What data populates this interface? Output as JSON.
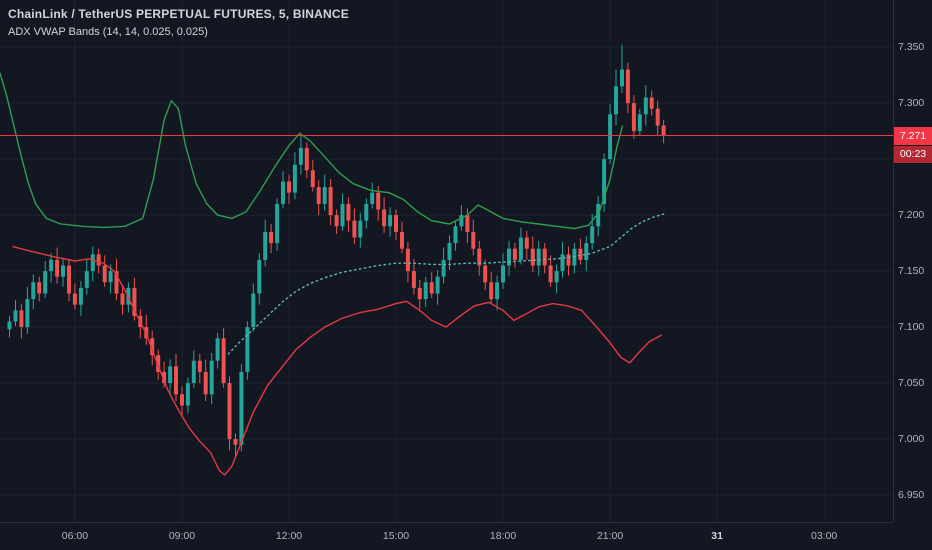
{
  "colors": {
    "background": "#131722",
    "grid": "#1e222d",
    "axis_text": "#b2b5be",
    "title_text": "#d1d4dc",
    "candle_up": "#26a69a",
    "candle_down": "#ef5350",
    "upper_band": "#2f9e4f",
    "lower_band": "#e53945",
    "vwap": "#5fb9b2",
    "price_line": "#f23645",
    "price_badge_bg": "#f23645",
    "countdown_badge_bg": "#b22833"
  },
  "price_axis": {
    "ticks": [
      7.35,
      7.3,
      7.25,
      7.2,
      7.15,
      7.1,
      7.05,
      7.0,
      6.95
    ],
    "last_price_label": "7.271",
    "countdown": "00:23"
  },
  "time_axis": {
    "ticks": [
      {
        "label": "06:00",
        "hour": 6
      },
      {
        "label": "09:00",
        "hour": 9
      },
      {
        "label": "12:00",
        "hour": 12
      },
      {
        "label": "15:00",
        "hour": 15
      },
      {
        "label": "18:00",
        "hour": 18
      },
      {
        "label": "21:00",
        "hour": 21
      },
      {
        "label": "31",
        "hour": 24,
        "emph": true
      },
      {
        "label": "03:00",
        "hour": 27
      }
    ]
  },
  "chart_data": {
    "type": "candlestick",
    "title": "ChainLink / TetherUS PERPETUAL FUTURES, 5, BINANCE",
    "indicator": "ADX VWAP Bands (14, 14, 0.025, 0.025)",
    "grid": true,
    "xlim_hours": [
      3.9,
      28.93
    ],
    "ylim": [
      6.926,
      7.392
    ],
    "start_hour": 4.1667,
    "bar_minutes": 10,
    "first_open": 7.098,
    "last_price": 7.271,
    "closes": [
      7.105,
      7.115,
      7.1,
      7.125,
      7.14,
      7.13,
      7.15,
      7.16,
      7.145,
      7.155,
      7.13,
      7.12,
      7.135,
      7.15,
      7.165,
      7.155,
      7.14,
      7.15,
      7.13,
      7.12,
      7.135,
      7.11,
      7.1,
      7.09,
      7.075,
      7.06,
      7.05,
      7.065,
      7.04,
      7.03,
      7.05,
      7.07,
      7.06,
      7.04,
      7.07,
      7.09,
      7.05,
      7.0,
      6.995,
      7.06,
      7.1,
      7.13,
      7.16,
      7.185,
      7.175,
      7.21,
      7.23,
      7.22,
      7.245,
      7.26,
      7.24,
      7.225,
      7.21,
      7.225,
      7.2,
      7.19,
      7.21,
      7.195,
      7.18,
      7.195,
      7.21,
      7.22,
      7.205,
      7.19,
      7.2,
      7.185,
      7.17,
      7.15,
      7.135,
      7.125,
      7.14,
      7.13,
      7.145,
      7.16,
      7.175,
      7.19,
      7.2,
      7.185,
      7.17,
      7.155,
      7.14,
      7.125,
      7.14,
      7.155,
      7.17,
      7.16,
      7.18,
      7.17,
      7.155,
      7.17,
      7.155,
      7.14,
      7.15,
      7.165,
      7.155,
      7.17,
      7.16,
      7.175,
      7.19,
      7.21,
      7.25,
      7.29,
      7.315,
      7.33,
      7.3,
      7.275,
      7.29,
      7.305,
      7.295,
      7.28,
      7.271
    ],
    "highs": [
      7.11,
      7.124,
      7.121,
      7.136,
      7.147,
      7.145,
      7.159,
      7.166,
      7.171,
      7.162,
      7.16,
      7.139,
      7.141,
      7.161,
      7.172,
      7.17,
      7.164,
      7.156,
      7.161,
      7.137,
      7.14,
      7.144,
      7.116,
      7.111,
      7.097,
      7.08,
      7.069,
      7.071,
      7.076,
      7.047,
      7.055,
      7.079,
      7.076,
      7.071,
      7.077,
      7.095,
      7.099,
      7.056,
      7.005,
      7.067,
      7.105,
      7.139,
      7.166,
      7.196,
      7.192,
      7.215,
      7.239,
      7.236,
      7.256,
      7.272,
      7.265,
      7.249,
      7.231,
      7.236,
      7.232,
      7.205,
      7.219,
      7.216,
      7.206,
      7.202,
      7.215,
      7.229,
      7.226,
      7.216,
      7.207,
      7.205,
      7.194,
      7.176,
      7.161,
      7.142,
      7.145,
      7.149,
      7.151,
      7.171,
      7.182,
      7.195,
      7.209,
      7.206,
      7.196,
      7.177,
      7.16,
      7.149,
      7.146,
      7.166,
      7.177,
      7.175,
      7.189,
      7.186,
      7.181,
      7.177,
      7.175,
      7.164,
      7.156,
      7.176,
      7.172,
      7.175,
      7.179,
      7.181,
      7.201,
      7.217,
      7.255,
      7.299,
      7.33,
      7.352,
      7.336,
      7.307,
      7.295,
      7.316,
      7.311,
      7.302,
      7.285
    ],
    "lows": [
      7.091,
      7.101,
      7.09,
      7.094,
      7.116,
      7.123,
      7.126,
      7.14,
      7.139,
      7.136,
      7.123,
      7.116,
      7.11,
      7.129,
      7.141,
      7.148,
      7.136,
      7.13,
      7.124,
      7.111,
      7.113,
      7.106,
      7.09,
      7.084,
      7.066,
      7.053,
      7.046,
      7.04,
      7.034,
      7.021,
      7.023,
      7.046,
      7.05,
      7.034,
      7.031,
      7.063,
      7.046,
      6.99,
      6.983,
      6.989,
      7.053,
      7.096,
      7.12,
      7.154,
      7.166,
      7.168,
      7.206,
      7.21,
      7.214,
      7.236,
      7.233,
      7.221,
      7.2,
      7.204,
      7.191,
      7.183,
      7.186,
      7.185,
      7.174,
      7.171,
      7.188,
      7.206,
      7.195,
      7.184,
      7.181,
      7.178,
      7.166,
      7.14,
      7.129,
      7.116,
      7.118,
      7.126,
      7.12,
      7.139,
      7.151,
      7.168,
      7.186,
      7.175,
      7.164,
      7.146,
      7.133,
      7.121,
      7.115,
      7.134,
      7.146,
      7.153,
      7.156,
      7.16,
      7.149,
      7.146,
      7.148,
      7.136,
      7.13,
      7.144,
      7.146,
      7.148,
      7.156,
      7.15,
      7.169,
      7.181,
      7.203,
      7.246,
      7.28,
      7.309,
      7.291,
      7.268,
      7.271,
      7.28,
      7.289,
      7.271,
      7.264
    ],
    "upper_band": [
      [
        3.9,
        7.327
      ],
      [
        4.1,
        7.305
      ],
      [
        4.3,
        7.278
      ],
      [
        4.5,
        7.252
      ],
      [
        4.7,
        7.228
      ],
      [
        4.9,
        7.21
      ],
      [
        5.2,
        7.197
      ],
      [
        5.6,
        7.192
      ],
      [
        6.2,
        7.19
      ],
      [
        6.8,
        7.189
      ],
      [
        7.4,
        7.19
      ],
      [
        7.9,
        7.197
      ],
      [
        8.2,
        7.232
      ],
      [
        8.5,
        7.285
      ],
      [
        8.7,
        7.302
      ],
      [
        8.9,
        7.295
      ],
      [
        9.1,
        7.262
      ],
      [
        9.4,
        7.228
      ],
      [
        9.7,
        7.21
      ],
      [
        10.0,
        7.2
      ],
      [
        10.4,
        7.197
      ],
      [
        10.8,
        7.203
      ],
      [
        11.2,
        7.222
      ],
      [
        11.6,
        7.243
      ],
      [
        12.0,
        7.262
      ],
      [
        12.3,
        7.273
      ],
      [
        12.6,
        7.266
      ],
      [
        13.0,
        7.252
      ],
      [
        13.4,
        7.238
      ],
      [
        13.8,
        7.228
      ],
      [
        14.3,
        7.222
      ],
      [
        14.8,
        7.22
      ],
      [
        15.2,
        7.214
      ],
      [
        15.6,
        7.203
      ],
      [
        16.0,
        7.195
      ],
      [
        16.5,
        7.192
      ],
      [
        17.0,
        7.2
      ],
      [
        17.3,
        7.209
      ],
      [
        17.6,
        7.204
      ],
      [
        18.0,
        7.197
      ],
      [
        18.5,
        7.194
      ],
      [
        19.0,
        7.192
      ],
      [
        19.5,
        7.19
      ],
      [
        20.0,
        7.188
      ],
      [
        20.4,
        7.191
      ],
      [
        20.7,
        7.203
      ],
      [
        21.0,
        7.232
      ],
      [
        21.2,
        7.262
      ],
      [
        21.35,
        7.28
      ]
    ],
    "lower_band": [
      [
        4.25,
        7.172
      ],
      [
        4.6,
        7.169
      ],
      [
        5.0,
        7.166
      ],
      [
        5.5,
        7.162
      ],
      [
        6.0,
        7.159
      ],
      [
        6.4,
        7.161
      ],
      [
        6.8,
        7.157
      ],
      [
        7.1,
        7.15
      ],
      [
        7.4,
        7.133
      ],
      [
        7.7,
        7.113
      ],
      [
        8.0,
        7.094
      ],
      [
        8.3,
        7.068
      ],
      [
        8.6,
        7.044
      ],
      [
        8.9,
        7.026
      ],
      [
        9.2,
        7.01
      ],
      [
        9.5,
        6.998
      ],
      [
        9.8,
        6.988
      ],
      [
        10.05,
        6.972
      ],
      [
        10.2,
        6.968
      ],
      [
        10.4,
        6.976
      ],
      [
        10.7,
        7.0
      ],
      [
        11.0,
        7.024
      ],
      [
        11.4,
        7.048
      ],
      [
        11.8,
        7.064
      ],
      [
        12.2,
        7.08
      ],
      [
        12.6,
        7.091
      ],
      [
        13.0,
        7.1
      ],
      [
        13.5,
        7.108
      ],
      [
        14.0,
        7.113
      ],
      [
        14.5,
        7.116
      ],
      [
        15.0,
        7.121
      ],
      [
        15.3,
        7.123
      ],
      [
        15.7,
        7.114
      ],
      [
        16.0,
        7.106
      ],
      [
        16.4,
        7.1
      ],
      [
        16.8,
        7.11
      ],
      [
        17.2,
        7.119
      ],
      [
        17.6,
        7.122
      ],
      [
        18.0,
        7.115
      ],
      [
        18.3,
        7.106
      ],
      [
        18.6,
        7.111
      ],
      [
        19.0,
        7.118
      ],
      [
        19.4,
        7.121
      ],
      [
        19.8,
        7.119
      ],
      [
        20.2,
        7.115
      ],
      [
        20.6,
        7.101
      ],
      [
        21.0,
        7.086
      ],
      [
        21.3,
        7.073
      ],
      [
        21.55,
        7.068
      ],
      [
        21.8,
        7.077
      ],
      [
        22.1,
        7.087
      ],
      [
        22.45,
        7.093
      ]
    ],
    "vwap_band": [
      [
        10.3,
        7.076
      ],
      [
        10.6,
        7.086
      ],
      [
        11.0,
        7.098
      ],
      [
        11.4,
        7.11
      ],
      [
        11.8,
        7.122
      ],
      [
        12.2,
        7.132
      ],
      [
        12.6,
        7.139
      ],
      [
        13.0,
        7.144
      ],
      [
        13.5,
        7.149
      ],
      [
        14.0,
        7.152
      ],
      [
        14.5,
        7.155
      ],
      [
        15.0,
        7.157
      ],
      [
        15.5,
        7.157
      ],
      [
        16.0,
        7.156
      ],
      [
        16.5,
        7.156
      ],
      [
        17.0,
        7.157
      ],
      [
        17.5,
        7.157
      ],
      [
        18.0,
        7.158
      ],
      [
        18.5,
        7.159
      ],
      [
        19.0,
        7.16
      ],
      [
        19.5,
        7.161
      ],
      [
        20.0,
        7.163
      ],
      [
        20.5,
        7.166
      ],
      [
        21.0,
        7.172
      ],
      [
        21.3,
        7.18
      ],
      [
        21.6,
        7.188
      ],
      [
        21.9,
        7.194
      ],
      [
        22.2,
        7.198
      ],
      [
        22.5,
        7.201
      ]
    ]
  }
}
